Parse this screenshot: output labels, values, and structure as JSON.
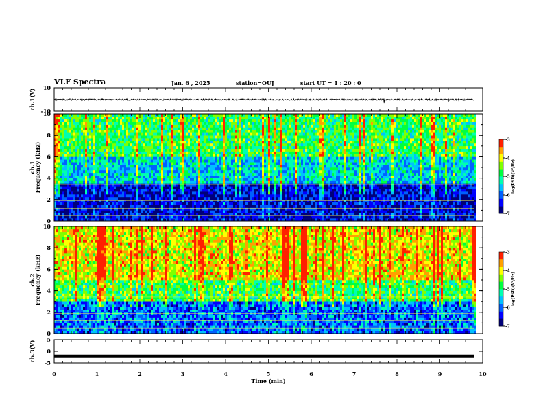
{
  "header": {
    "title": "VLF Spectra",
    "date": "Jan. 6 , 2025",
    "station": "station=OUJ",
    "start_ut": "start UT =  1 : 20 : 0"
  },
  "chart_data": [
    {
      "type": "line",
      "panel": "ch.1(V)",
      "ylabel": "ch.1(V)",
      "ylim": [
        -10,
        10
      ],
      "yticks": [
        "10",
        "-10"
      ],
      "xlim": [
        0,
        10
      ],
      "x": [
        0,
        1,
        2,
        3,
        4,
        5,
        6,
        7,
        7.7,
        8,
        9,
        9.2,
        9.8
      ],
      "y": [
        0,
        0,
        0,
        0,
        0,
        0,
        0,
        0,
        -3,
        0,
        0,
        -2,
        0
      ],
      "xrange_data": [
        0,
        9.8
      ]
    },
    {
      "type": "heatmap",
      "panel": "ch.1 spectrogram",
      "ylabel": "ch.1 Frequency (kHz)",
      "ylim": [
        0,
        10
      ],
      "yticks": [
        "0",
        "2",
        "4",
        "6",
        "8",
        "10"
      ],
      "xlim": [
        0,
        10
      ],
      "xrange_data": [
        0,
        9.8
      ],
      "colorbar": {
        "label": "log(PSD)(V²/Hz)",
        "range": [
          -7,
          -3
        ],
        "ticks": [
          "-3",
          "-4",
          "-5",
          "-6",
          "-7"
        ]
      },
      "dominant_levels": [
        {
          "freq_kHz": [
            0,
            3.5
          ],
          "logPSD": -6.5
        },
        {
          "freq_kHz": [
            3.5,
            6
          ],
          "logPSD": -5.5
        },
        {
          "freq_kHz": [
            6,
            10
          ],
          "logPSD": -4.8
        }
      ]
    },
    {
      "type": "heatmap",
      "panel": "ch.2 spectrogram",
      "ylabel": "ch.2 Frequency (kHz)",
      "ylim": [
        0,
        10
      ],
      "yticks": [
        "0",
        "2",
        "4",
        "6",
        "8",
        "10"
      ],
      "xlim": [
        0,
        10
      ],
      "xrange_data": [
        0,
        9.8
      ],
      "colorbar": {
        "label": "log(PSD)(V²/Hz)",
        "range": [
          -7,
          -3
        ],
        "ticks": [
          "-3",
          "-4",
          "-5",
          "-6",
          "-7"
        ]
      },
      "dominant_levels": [
        {
          "freq_kHz": [
            0,
            3
          ],
          "logPSD": -6.0
        },
        {
          "freq_kHz": [
            3,
            5
          ],
          "logPSD": -4.8
        },
        {
          "freq_kHz": [
            5,
            10
          ],
          "logPSD": -4.0
        }
      ]
    },
    {
      "type": "line",
      "panel": "ch.3(V)",
      "ylabel": "ch.3(V)",
      "ylim": [
        -5,
        5
      ],
      "yticks": [
        "5",
        "0",
        "-5"
      ],
      "xlim": [
        0,
        10
      ],
      "x": [
        0,
        9.8
      ],
      "y": [
        -2,
        -2
      ],
      "xrange_data": [
        0,
        9.8
      ]
    }
  ],
  "xaxis": {
    "label": "Time (min)",
    "ticks": [
      "0",
      "1",
      "2",
      "3",
      "4",
      "5",
      "6",
      "7",
      "8",
      "9",
      "10"
    ]
  },
  "colors": {
    "colormap": [
      "#00007a",
      "#0000ff",
      "#0060ff",
      "#00c0ff",
      "#00ffb0",
      "#00ff40",
      "#80ff00",
      "#ffff00",
      "#ffa000",
      "#ff2000",
      "#ffffff"
    ]
  }
}
